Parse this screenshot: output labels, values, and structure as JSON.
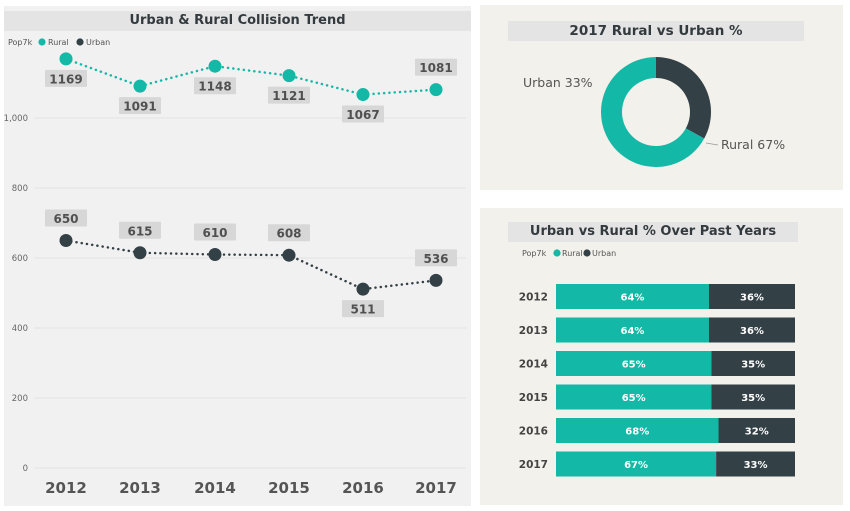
{
  "colors": {
    "rural": "#14b8a6",
    "urban": "#334046"
  },
  "chart_data": [
    {
      "type": "line",
      "title": "Urban & Rural Collision Trend",
      "legend_title": "Pop7k",
      "categories": [
        "2012",
        "2013",
        "2014",
        "2015",
        "2016",
        "2017"
      ],
      "series": [
        {
          "name": "Rural",
          "values": [
            1169,
            1091,
            1148,
            1121,
            1067,
            1081
          ]
        },
        {
          "name": "Urban",
          "values": [
            650,
            615,
            610,
            608,
            511,
            536
          ]
        }
      ],
      "yticks": [
        "0",
        "200",
        "400",
        "600",
        "800",
        "1,000"
      ],
      "ylim": [
        0,
        1140
      ],
      "grid": true,
      "legend": "top-left"
    },
    {
      "type": "pie",
      "title": "2017 Rural vs Urban %",
      "slices": [
        {
          "name": "Urban",
          "label": "Urban 33%",
          "value": 33
        },
        {
          "name": "Rural",
          "label": "Rural 67%",
          "value": 67
        }
      ]
    },
    {
      "type": "bar",
      "title": "Urban vs Rural % Over Past Years",
      "legend_title": "Pop7k",
      "categories": [
        "2012",
        "2013",
        "2014",
        "2015",
        "2016",
        "2017"
      ],
      "series": [
        {
          "name": "Rural",
          "values": [
            64,
            64,
            65,
            65,
            68,
            67
          ],
          "labels": [
            "64%",
            "64%",
            "65%",
            "65%",
            "68%",
            "67%"
          ]
        },
        {
          "name": "Urban",
          "values": [
            36,
            36,
            35,
            35,
            32,
            33
          ],
          "labels": [
            "36%",
            "36%",
            "35%",
            "35%",
            "32%",
            "33%"
          ]
        }
      ],
      "stacked": true,
      "legend": "top-left"
    }
  ]
}
